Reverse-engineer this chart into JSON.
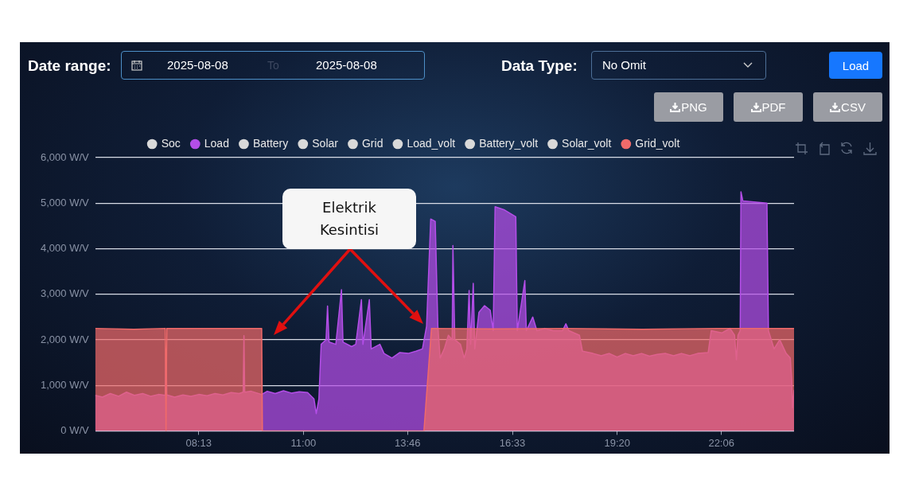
{
  "chart_data": {
    "type": "area",
    "annotations": [
      "Date range:",
      "2025-08-08",
      "To",
      "2025-08-08",
      "Data Type:",
      "No Omit",
      "Load",
      "PNG",
      "PDF",
      "CSV",
      "Elektrik Kesintisi"
    ],
    "xlim": [
      5.47,
      24.03
    ],
    "xticks": [
      {
        "value": 8.2167,
        "label": "08:13"
      },
      {
        "value": 11,
        "label": "11:00"
      },
      {
        "value": 13.7667,
        "label": "13:46"
      },
      {
        "value": 16.55,
        "label": "16:33"
      },
      {
        "value": 19.3333,
        "label": "19:20"
      },
      {
        "value": 22.1,
        "label": "22:06"
      }
    ],
    "ylim": [
      0,
      6000
    ],
    "yticks": [
      {
        "value": 0,
        "label": "0 W/V"
      },
      {
        "value": 1000,
        "label": "1,000 W/V"
      },
      {
        "value": 2000,
        "label": "2,000 W/V"
      },
      {
        "value": 3000,
        "label": "3,000 W/V"
      },
      {
        "value": 4000,
        "label": "4,000 W/V"
      },
      {
        "value": 5000,
        "label": "5,000 W/V"
      },
      {
        "value": 6000,
        "label": "6,000 W/V"
      }
    ],
    "grid": "y",
    "legend": "top",
    "marker": "none",
    "series": [
      {
        "name": "Soc",
        "color": "#d9d9d9"
      },
      {
        "name": "Load",
        "color": "#b44ee8",
        "x": [
          5.47,
          5.66,
          5.87,
          6.09,
          6.3,
          6.51,
          6.73,
          6.94,
          7.15,
          7.33,
          7.35,
          7.37,
          7.58,
          7.8,
          8.01,
          8.22,
          8.44,
          8.65,
          8.86,
          9.08,
          9.29,
          9.4,
          9.42,
          9.44,
          9.61,
          9.89,
          10.04,
          10.25,
          10.47,
          10.68,
          10.89,
          11.11,
          11.28,
          11.34,
          11.41,
          11.47,
          11.6,
          11.64,
          11.68,
          11.86,
          12.01,
          12.05,
          12.28,
          12.39,
          12.54,
          12.58,
          12.75,
          12.8,
          13.03,
          13.14,
          13.35,
          13.56,
          13.78,
          13.99,
          14.16,
          14.27,
          14.38,
          14.5,
          14.57,
          14.63,
          14.74,
          14.85,
          14.95,
          14.97,
          15.02,
          15.17,
          15.27,
          15.34,
          15.4,
          15.44,
          15.51,
          15.55,
          15.66,
          15.81,
          15.96,
          16.04,
          16.09,
          16.34,
          16.64,
          16.68,
          16.88,
          16.92,
          17.09,
          17.2,
          17.41,
          17.63,
          17.88,
          17.97,
          18.05,
          18.33,
          18.41,
          18.69,
          18.91,
          19.12,
          19.33,
          19.55,
          19.76,
          19.98,
          20.19,
          20.4,
          20.62,
          20.83,
          21.04,
          21.26,
          21.47,
          21.75,
          21.83,
          22.11,
          22.33,
          22.45,
          22.5,
          22.54,
          22.6,
          22.62,
          22.67,
          23.31,
          23.35,
          23.5,
          23.65,
          23.82,
          23.93,
          23.97,
          23.99,
          24.03
        ],
        "values": [
          780,
          740,
          820,
          760,
          850,
          780,
          820,
          760,
          800,
          780,
          1800,
          790,
          740,
          790,
          760,
          800,
          770,
          820,
          790,
          840,
          820,
          850,
          2090,
          850,
          870,
          800,
          870,
          820,
          880,
          830,
          860,
          840,
          700,
          380,
          700,
          1900,
          2000,
          2740,
          1950,
          1900,
          3100,
          1950,
          1850,
          1900,
          2880,
          1900,
          2880,
          1800,
          1900,
          1700,
          1600,
          1720,
          1700,
          1750,
          1800,
          2300,
          4650,
          4600,
          2300,
          1600,
          1800,
          2100,
          2000,
          4070,
          2000,
          1900,
          1600,
          1800,
          3080,
          1900,
          3240,
          1800,
          2600,
          2750,
          2650,
          2200,
          4920,
          4850,
          4700,
          2200,
          3300,
          2200,
          2500,
          2200,
          2250,
          2200,
          2200,
          2350,
          2200,
          2100,
          1750,
          1700,
          1650,
          1700,
          1620,
          1700,
          1650,
          1700,
          1640,
          1680,
          1700,
          1650,
          1700,
          1650,
          1700,
          1720,
          2200,
          2150,
          2250,
          2100,
          1560,
          2100,
          2200,
          5250,
          5050,
          5000,
          2200,
          1800,
          2000,
          1700,
          1600,
          1100,
          510,
          900
        ]
      },
      {
        "name": "Battery",
        "color": "#d9d9d9"
      },
      {
        "name": "Solar",
        "color": "#d9d9d9"
      },
      {
        "name": "Grid",
        "color": "#d9d9d9"
      },
      {
        "name": "Load_volt",
        "color": "#d9d9d9"
      },
      {
        "name": "Battery_volt",
        "color": "#d9d9d9"
      },
      {
        "name": "Solar_volt",
        "color": "#d9d9d9"
      },
      {
        "name": "Grid_volt",
        "color": "#f06a6a",
        "x": [
          5.47,
          6.5,
          7.33,
          7.35,
          7.37,
          8.5,
          9.89,
          9.91,
          14.2,
          14.4,
          16,
          18,
          20,
          22,
          24.03
        ],
        "values": [
          2250,
          2230,
          2250,
          0,
          2250,
          2250,
          2250,
          0,
          0,
          2250,
          2240,
          2250,
          2230,
          2250,
          2250
        ]
      }
    ]
  }
}
